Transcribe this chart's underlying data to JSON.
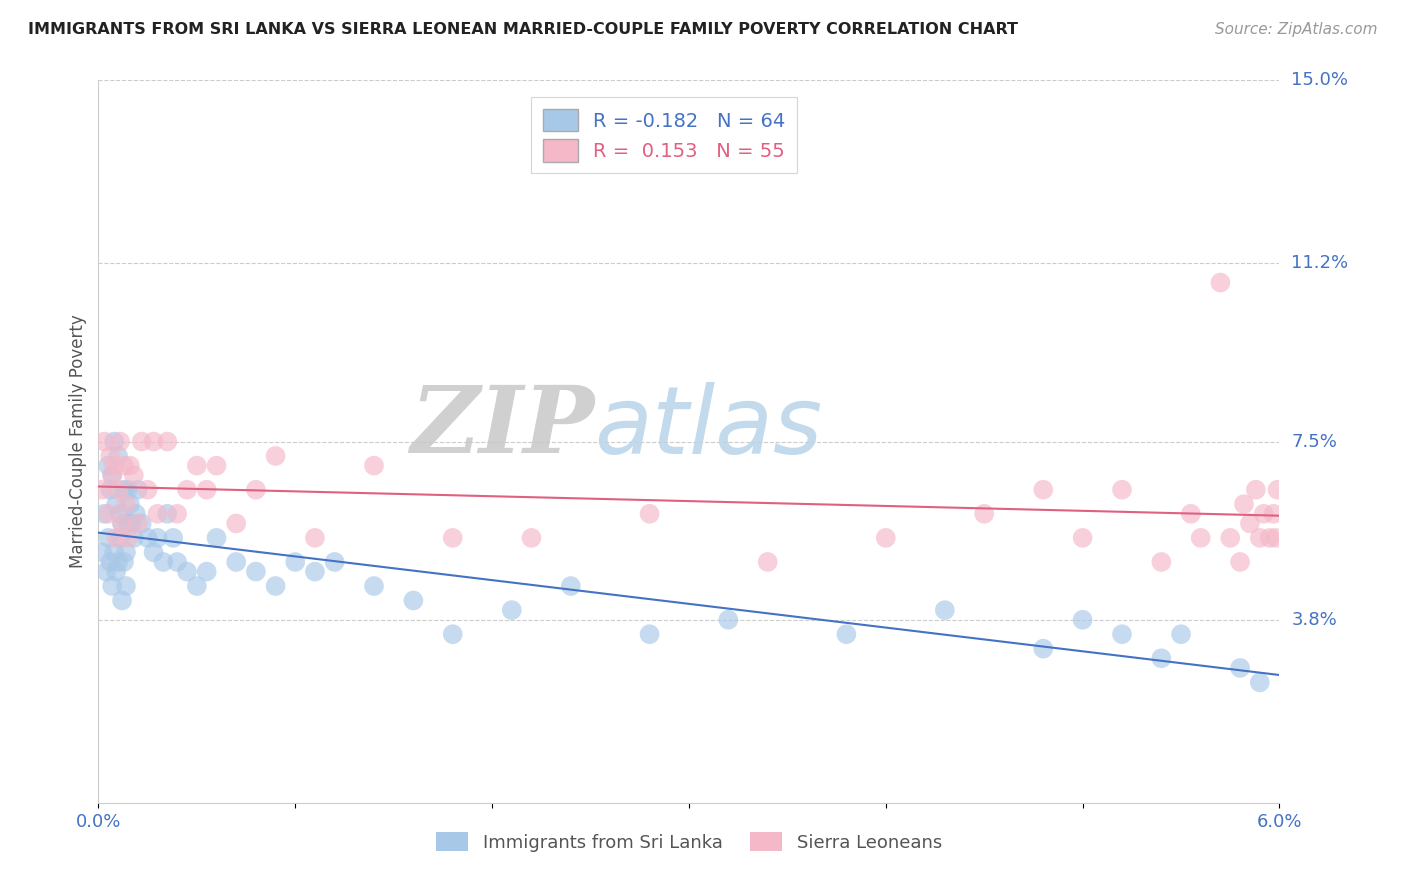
{
  "title": "IMMIGRANTS FROM SRI LANKA VS SIERRA LEONEAN MARRIED-COUPLE FAMILY POVERTY CORRELATION CHART",
  "source": "Source: ZipAtlas.com",
  "ylabel": "Married-Couple Family Poverty",
  "xlim": [
    0.0,
    6.0
  ],
  "ylim": [
    0.0,
    15.0
  ],
  "ytick_vals": [
    3.8,
    7.5,
    11.2,
    15.0
  ],
  "ytick_labels": [
    "3.8%",
    "7.5%",
    "11.2%",
    "15.0%"
  ],
  "blue_R": -0.182,
  "blue_N": 64,
  "pink_R": 0.153,
  "pink_N": 55,
  "blue_color": "#a8c8e8",
  "pink_color": "#f4b8c8",
  "blue_line_color": "#4472c4",
  "pink_line_color": "#e06080",
  "legend_label_blue": "Immigrants from Sri Lanka",
  "legend_label_pink": "Sierra Leoneans",
  "watermark_zip": "ZIP",
  "watermark_atlas": "atlas",
  "background_color": "#ffffff",
  "blue_x": [
    0.02,
    0.03,
    0.04,
    0.05,
    0.05,
    0.06,
    0.06,
    0.07,
    0.07,
    0.08,
    0.08,
    0.09,
    0.09,
    0.1,
    0.1,
    0.11,
    0.11,
    0.12,
    0.12,
    0.13,
    0.13,
    0.14,
    0.14,
    0.15,
    0.15,
    0.16,
    0.17,
    0.18,
    0.19,
    0.2,
    0.22,
    0.25,
    0.28,
    0.3,
    0.33,
    0.35,
    0.38,
    0.4,
    0.45,
    0.5,
    0.55,
    0.6,
    0.7,
    0.8,
    0.9,
    1.0,
    1.1,
    1.2,
    1.4,
    1.6,
    1.8,
    2.1,
    2.4,
    2.8,
    3.2,
    3.8,
    4.3,
    4.8,
    5.0,
    5.2,
    5.4,
    5.5,
    5.8,
    5.9
  ],
  "blue_y": [
    5.2,
    6.0,
    4.8,
    5.5,
    7.0,
    5.0,
    6.5,
    4.5,
    6.8,
    5.2,
    7.5,
    4.8,
    6.2,
    5.0,
    7.2,
    5.5,
    6.0,
    4.2,
    5.8,
    5.0,
    6.5,
    4.5,
    5.2,
    5.8,
    6.5,
    6.2,
    5.8,
    5.5,
    6.0,
    6.5,
    5.8,
    5.5,
    5.2,
    5.5,
    5.0,
    6.0,
    5.5,
    5.0,
    4.8,
    4.5,
    4.8,
    5.5,
    5.0,
    4.8,
    4.5,
    5.0,
    4.8,
    5.0,
    4.5,
    4.2,
    3.5,
    4.0,
    4.5,
    3.5,
    3.8,
    3.5,
    4.0,
    3.2,
    3.8,
    3.5,
    3.0,
    3.5,
    2.8,
    2.5
  ],
  "pink_x": [
    0.02,
    0.03,
    0.05,
    0.06,
    0.07,
    0.08,
    0.09,
    0.1,
    0.11,
    0.12,
    0.13,
    0.14,
    0.15,
    0.16,
    0.18,
    0.2,
    0.22,
    0.25,
    0.28,
    0.3,
    0.35,
    0.4,
    0.45,
    0.5,
    0.55,
    0.6,
    0.7,
    0.8,
    0.9,
    1.1,
    1.4,
    1.8,
    2.2,
    2.8,
    3.4,
    4.0,
    4.5,
    4.8,
    5.0,
    5.2,
    5.4,
    5.55,
    5.6,
    5.7,
    5.75,
    5.8,
    5.82,
    5.85,
    5.88,
    5.9,
    5.92,
    5.95,
    5.97,
    5.98,
    5.99
  ],
  "pink_y": [
    6.5,
    7.5,
    6.0,
    7.2,
    6.8,
    7.0,
    5.5,
    6.5,
    7.5,
    5.8,
    7.0,
    6.2,
    5.5,
    7.0,
    6.8,
    5.8,
    7.5,
    6.5,
    7.5,
    6.0,
    7.5,
    6.0,
    6.5,
    7.0,
    6.5,
    7.0,
    5.8,
    6.5,
    7.2,
    5.5,
    7.0,
    5.5,
    5.5,
    6.0,
    5.0,
    5.5,
    6.0,
    6.5,
    5.5,
    6.5,
    5.0,
    6.0,
    5.5,
    10.8,
    5.5,
    5.0,
    6.2,
    5.8,
    6.5,
    5.5,
    6.0,
    5.5,
    6.0,
    5.5,
    6.5
  ]
}
